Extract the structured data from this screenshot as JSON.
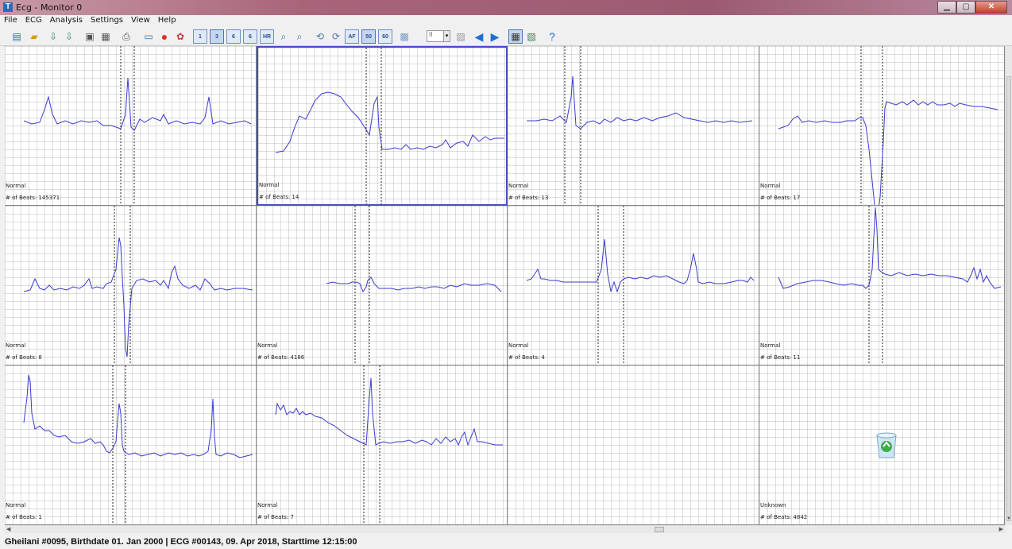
{
  "window": {
    "title": "Ecg - Monitor 0",
    "icon_letter": "T",
    "controls": [
      "minimize",
      "maximize",
      "close"
    ]
  },
  "menu": [
    "File",
    "ECG",
    "Analysis",
    "Settings",
    "View",
    "Help"
  ],
  "toolbar": {
    "buttons": [
      {
        "name": "open-folder-icon",
        "glyph": "📂"
      },
      {
        "name": "open-file-icon",
        "glyph": "📁"
      },
      {
        "name": "download-icon",
        "glyph": "⇩"
      },
      {
        "name": "download-alt-icon",
        "glyph": "⇩"
      },
      {
        "name": "save-icon",
        "glyph": "💾"
      },
      {
        "name": "save-all-icon",
        "glyph": "🗂"
      },
      {
        "name": "print-icon",
        "glyph": "🖨"
      },
      {
        "name": "monitor-icon",
        "glyph": "🖥"
      },
      {
        "name": "record-icon",
        "glyph": "●"
      },
      {
        "name": "color-icon",
        "glyph": "🎨"
      }
    ],
    "mode_buttons": [
      "1",
      "3",
      "6",
      "6",
      "HR"
    ],
    "zoom": [
      "zoom-in-icon",
      "zoom-out-icon"
    ],
    "filter_buttons": [
      "AF",
      "50",
      "60"
    ],
    "combo_value": "II",
    "colors": {
      "accent": "#1e6fd9",
      "trace": "#3a3ad0",
      "selected_border": "#4b4bc8"
    }
  },
  "cells": [
    {
      "type": "Normal",
      "beats_label": "# of Beats: 145371"
    },
    {
      "type": "Normal",
      "beats_label": "# of Beats: 14",
      "selected": true
    },
    {
      "type": "Normal",
      "beats_label": "# of Beats: 13"
    },
    {
      "type": "Normal",
      "beats_label": "# of Beats: 17"
    },
    {
      "type": "Normal",
      "beats_label": "# of Beats: 8"
    },
    {
      "type": "Normal",
      "beats_label": "# of Beats: 4186"
    },
    {
      "type": "Normal",
      "beats_label": "# of Beats: 4"
    },
    {
      "type": "Normal",
      "beats_label": "# of Beats: 11"
    },
    {
      "type": "Normal",
      "beats_label": "# of Beats: 1"
    },
    {
      "type": "Normal",
      "beats_label": "# of Beats: 7"
    },
    {
      "type": "",
      "beats_label": ""
    },
    {
      "type": "Unknown",
      "beats_label": "# of Beats: 4842",
      "trash": true
    }
  ],
  "status": {
    "text": "Gheilani #0095, Birthdate 01. Jan 2000 | ECG #00143, 09. Apr 2018, Starttime 12:15:00"
  }
}
